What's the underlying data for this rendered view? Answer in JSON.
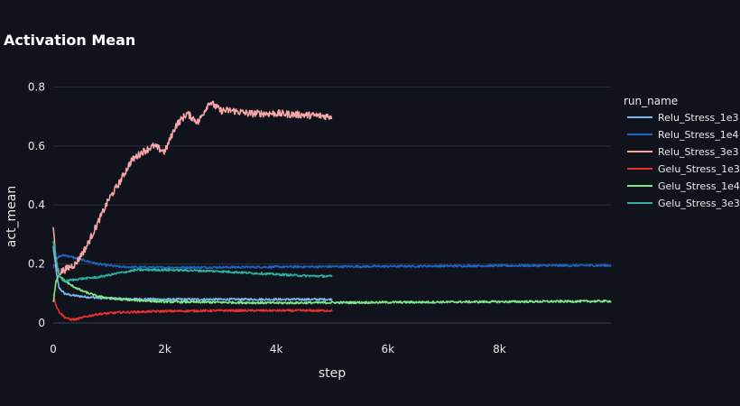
{
  "chart_data": {
    "type": "line",
    "title": "Activation Mean",
    "xlabel": "step",
    "ylabel": "act_mean",
    "xlim": [
      0,
      10000
    ],
    "ylim": [
      0,
      0.85
    ],
    "x_ticks": [
      0,
      2000,
      4000,
      6000,
      8000
    ],
    "x_tick_labels": [
      "0",
      "2k",
      "4k",
      "6k",
      "8k"
    ],
    "y_ticks": [
      0,
      0.2,
      0.4,
      0.6,
      0.8
    ],
    "y_tick_labels": [
      "0",
      "0.2",
      "0.4",
      "0.6",
      "0.8"
    ],
    "grid": true,
    "legend_title": "run_name",
    "legend_position": "right",
    "series": [
      {
        "name": "Relu_Stress_1e3",
        "color": "#7ab8ef",
        "x": [
          0,
          50,
          100,
          200,
          300,
          500,
          800,
          1200,
          2000,
          3000,
          4000,
          5000
        ],
        "y": [
          0.26,
          0.18,
          0.12,
          0.1,
          0.095,
          0.09,
          0.085,
          0.082,
          0.08,
          0.08,
          0.08,
          0.08
        ]
      },
      {
        "name": "Relu_Stress_1e4",
        "color": "#1f64c0",
        "x": [
          0,
          50,
          100,
          200,
          300,
          500,
          800,
          1200,
          2000,
          4000,
          6000,
          8000,
          10000
        ],
        "y": [
          0.19,
          0.21,
          0.225,
          0.23,
          0.225,
          0.215,
          0.2,
          0.19,
          0.188,
          0.19,
          0.192,
          0.194,
          0.195
        ]
      },
      {
        "name": "Relu_Stress_3e3",
        "color": "#f7a6a6",
        "x": [
          0,
          50,
          100,
          200,
          400,
          600,
          800,
          1000,
          1200,
          1400,
          1600,
          1800,
          2000,
          2200,
          2400,
          2600,
          2800,
          3000,
          3200,
          3500,
          4000,
          4500,
          5000
        ],
        "y": [
          0.33,
          0.2,
          0.17,
          0.18,
          0.2,
          0.26,
          0.34,
          0.42,
          0.48,
          0.55,
          0.58,
          0.6,
          0.58,
          0.67,
          0.71,
          0.68,
          0.75,
          0.72,
          0.72,
          0.71,
          0.71,
          0.705,
          0.7
        ]
      },
      {
        "name": "Gelu_Stress_1e3",
        "color": "#e83030",
        "x": [
          0,
          50,
          100,
          200,
          300,
          400,
          600,
          800,
          1200,
          2000,
          3000,
          4000,
          5000
        ],
        "y": [
          0.1,
          0.06,
          0.04,
          0.02,
          0.012,
          0.012,
          0.022,
          0.03,
          0.036,
          0.04,
          0.042,
          0.042,
          0.042
        ]
      },
      {
        "name": "Gelu_Stress_1e4",
        "color": "#7ee88a",
        "x": [
          0,
          50,
          100,
          200,
          300,
          500,
          800,
          1200,
          2000,
          4000,
          6000,
          8000,
          10000
        ],
        "y": [
          0.07,
          0.14,
          0.16,
          0.145,
          0.13,
          0.11,
          0.09,
          0.08,
          0.072,
          0.068,
          0.07,
          0.072,
          0.074
        ]
      },
      {
        "name": "Gelu_Stress_3e3",
        "color": "#2bb3a0",
        "x": [
          0,
          50,
          100,
          200,
          300,
          500,
          800,
          1200,
          1500,
          2000,
          2500,
          3000,
          3500,
          4000,
          4500,
          5000
        ],
        "y": [
          0.28,
          0.22,
          0.16,
          0.14,
          0.145,
          0.15,
          0.155,
          0.17,
          0.18,
          0.18,
          0.178,
          0.175,
          0.17,
          0.165,
          0.16,
          0.158
        ]
      }
    ]
  }
}
